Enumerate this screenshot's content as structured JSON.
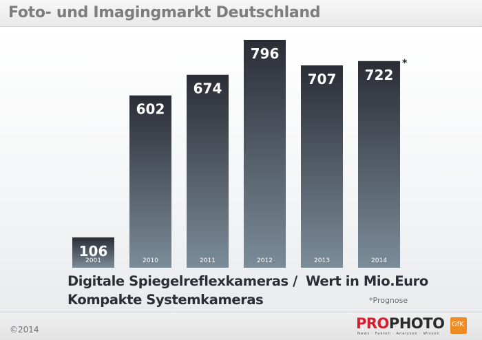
{
  "header": {
    "title": "Foto- und Imagingmarkt Deutschland"
  },
  "chart_data": {
    "type": "bar",
    "categories": [
      "2001",
      "2010",
      "2011",
      "2012",
      "2013",
      "2014"
    ],
    "values": [
      106,
      602,
      674,
      796,
      707,
      722
    ],
    "value_labels": [
      "106",
      "602",
      "674",
      "796",
      "707",
      "722"
    ],
    "asterisk": "*",
    "ylim": [
      0,
      820
    ],
    "grid": false,
    "legend": "none",
    "bar_color_top": "#2b2d36",
    "bar_color_bottom": "#7b8c99"
  },
  "caption": {
    "line1": "Digitale Spiegelreflexkameras /",
    "line2": "Kompakte Systemkameras",
    "unit": "Wert in Mio.Euro",
    "footnote": "*Prognose"
  },
  "footer": {
    "copyright": "©2014",
    "logo_pro": "PRO",
    "logo_photo": "PHOTO",
    "logo_tagline": "News · Fakten · Analysen · Wissen",
    "partner": "GfK",
    "partner_color": "#f08a22"
  }
}
